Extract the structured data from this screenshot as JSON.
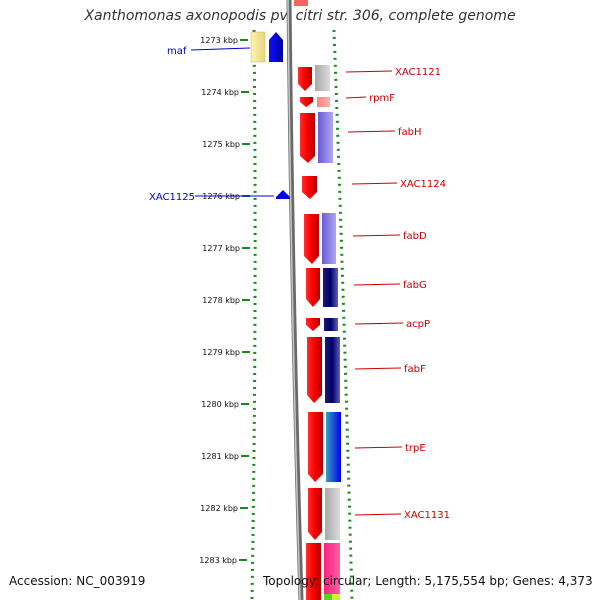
{
  "title": "Xanthomonas axonopodis pv. citri str. 306, complete genome",
  "footer": {
    "accession": "Accession: NC_003919",
    "summary": "Topology: circular; Length: 5,175,554 bp; Genes: 4,373"
  },
  "ticks": [
    "1273 kbp",
    "1274 kbp",
    "1275 kbp",
    "1276 kbp",
    "1277 kbp",
    "1278 kbp",
    "1279 kbp",
    "1280 kbp",
    "1281 kbp",
    "1282 kbp",
    "1283 kbp"
  ],
  "left_labels": [
    "maf",
    "XAC1125"
  ],
  "right_labels": [
    "XAC1121",
    "rpmF",
    "fabH",
    "XAC1124",
    "fabD",
    "fabG",
    "acpP",
    "fabF",
    "trpE",
    "XAC1131"
  ],
  "colors": {
    "gene_red": "#ff0000",
    "label_red": "#cc0000",
    "label_blue": "#0000cc",
    "dotted_green": "#1a8a1a",
    "backbone": "#888888",
    "maf_yellow": "#f5e89a",
    "forward_blue": "#0000ee"
  }
}
